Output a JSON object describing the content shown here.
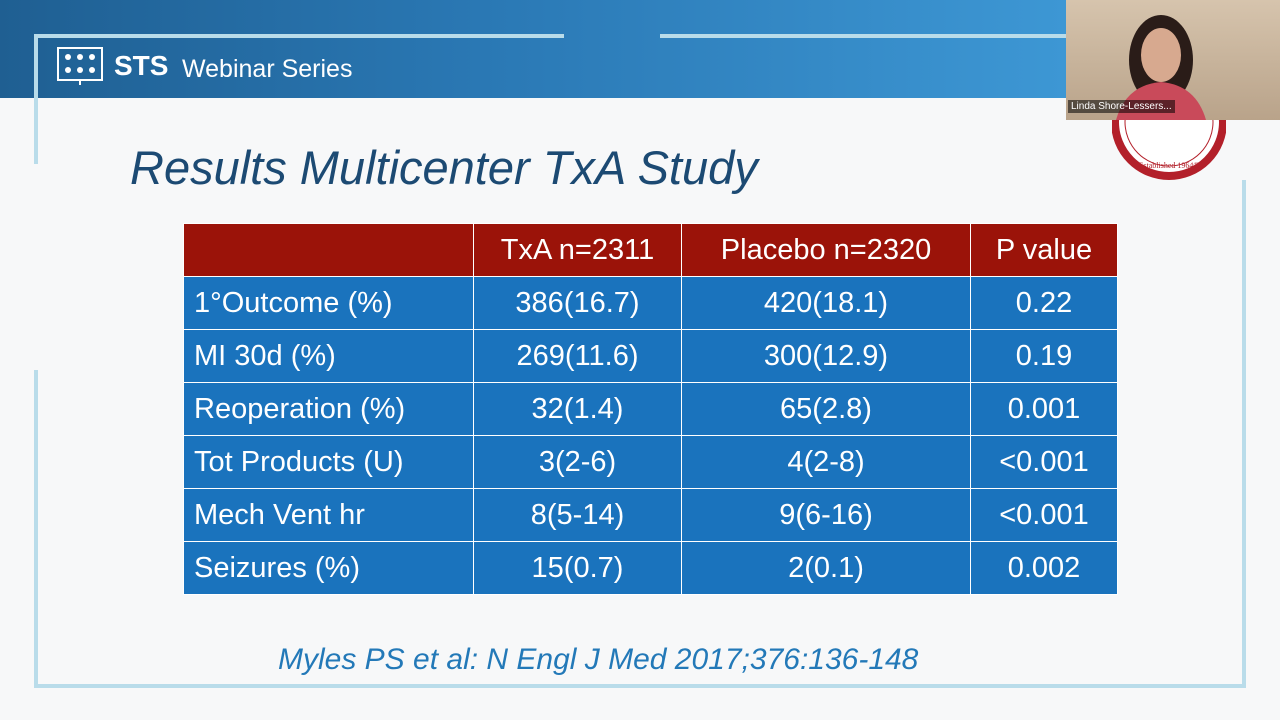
{
  "header": {
    "brand": "STS",
    "series": "Webinar Series"
  },
  "video": {
    "participant": "Linda Shore-Lessers..."
  },
  "logo": {
    "text": "Established 1964®"
  },
  "slide": {
    "title": "Results Multicenter TxA Study",
    "table": {
      "header": [
        "TxA n=2311",
        "Placebo n=2320",
        "P value"
      ],
      "rows": [
        [
          "1°Outcome (%)",
          "386(16.7)",
          "420(18.1)",
          "0.22"
        ],
        [
          "MI 30d (%)",
          "269(11.6)",
          "300(12.9)",
          "0.19"
        ],
        [
          "Reoperation (%)",
          "32(1.4)",
          "65(2.8)",
          "0.001"
        ],
        [
          "Tot Products (U)",
          "3(2-6)",
          "4(2-8)",
          "<0.001"
        ],
        [
          "Mech Vent hr",
          "8(5-14)",
          "9(6-16)",
          "<0.001"
        ],
        [
          "Seizures (%)",
          "15(0.7)",
          "2(0.1)",
          "0.002"
        ]
      ]
    },
    "citation": "Myles PS et al: N Engl J Med 2017;376:136-148"
  }
}
